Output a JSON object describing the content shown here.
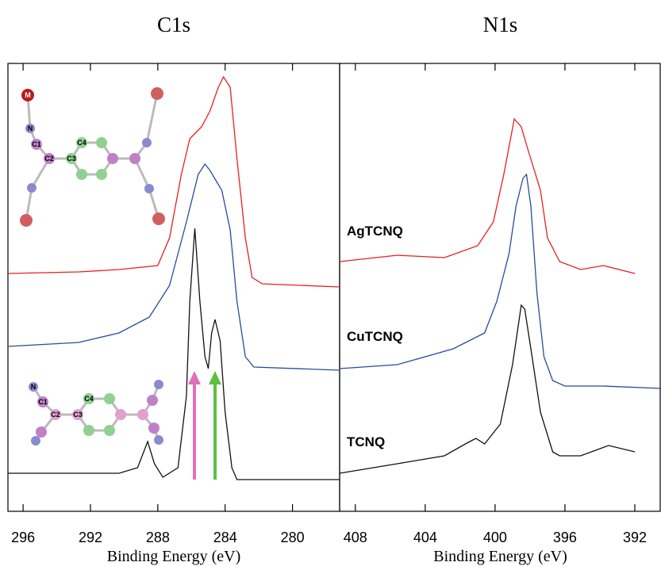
{
  "chart_data": [
    {
      "type": "line",
      "title": "C1s",
      "xlabel": "Binding Energy (eV)",
      "xlim": [
        296.9,
        277.2
      ],
      "xticks": [
        296,
        292,
        288,
        284,
        280
      ],
      "ylim": [
        0,
        565
      ],
      "series": [
        {
          "color": "#e8201e",
          "x": [
            296.9,
            292.7,
            290.3,
            288.0,
            287.3,
            286.6,
            286.1,
            285.4,
            284.9,
            284.4,
            284.1,
            283.7,
            283.3,
            282.8,
            282.4,
            281.8,
            277.2
          ],
          "values": [
            300,
            302,
            305,
            310,
            345,
            425,
            470,
            485,
            505,
            535,
            548,
            535,
            445,
            345,
            295,
            287,
            283
          ]
        },
        {
          "color": "#2a4a9c",
          "x": [
            296.9,
            292.7,
            290.3,
            288.5,
            287.3,
            286.3,
            285.6,
            285.2,
            284.9,
            284.2,
            283.7,
            283.3,
            282.8,
            282.3,
            277.2
          ],
          "values": [
            208,
            213,
            225,
            245,
            285,
            365,
            425,
            438,
            430,
            405,
            355,
            265,
            195,
            182,
            178
          ]
        },
        {
          "color": "#111111",
          "x": [
            296.9,
            290.3,
            289.2,
            288.6,
            288.2,
            287.7,
            286.8,
            286.3,
            286.1,
            285.8,
            285.5,
            285.2,
            285.0,
            284.8,
            284.6,
            284.3,
            284.0,
            283.6,
            283.3,
            277.2
          ],
          "values": [
            48,
            48,
            55,
            88,
            60,
            43,
            55,
            145,
            265,
            357,
            265,
            195,
            180,
            225,
            242,
            215,
            125,
            55,
            40,
            40
          ]
        }
      ]
    },
    {
      "type": "line",
      "title": "N1s",
      "xlabel": "Binding Energy (eV)",
      "xlim": [
        408.9,
        390.5
      ],
      "xticks": [
        408,
        404,
        400,
        396,
        392
      ],
      "ylim": [
        0,
        565
      ],
      "series": [
        {
          "name": "AgTCNQ",
          "color": "#e8201e",
          "x": [
            408.9,
            405.6,
            402.9,
            401.0,
            400.1,
            399.5,
            398.9,
            398.5,
            398.1,
            397.4,
            397.0,
            396.3,
            395.1,
            393.8,
            392.0
          ],
          "values": [
            315,
            323,
            320,
            335,
            365,
            425,
            495,
            485,
            455,
            405,
            345,
            315,
            305,
            310,
            300
          ]
        },
        {
          "name": "CuTCNQ",
          "color": "#2a4a9c",
          "x": [
            408.9,
            405.6,
            402.4,
            400.6,
            399.9,
            399.2,
            398.8,
            398.4,
            398.2,
            397.95,
            397.6,
            397.2,
            396.7,
            396.0,
            393.8,
            390.5
          ],
          "values": [
            180,
            185,
            205,
            225,
            265,
            325,
            385,
            420,
            425,
            385,
            275,
            195,
            165,
            158,
            158,
            155
          ]
        },
        {
          "name": "TCNQ",
          "color": "#111111",
          "x": [
            408.9,
            405.6,
            402.9,
            401.7,
            401.1,
            400.6,
            399.7,
            399.0,
            398.5,
            398.3,
            397.95,
            397.4,
            396.7,
            396.3,
            395.1,
            393.5,
            392.0
          ],
          "values": [
            48,
            60,
            70,
            85,
            92,
            85,
            110,
            185,
            260,
            255,
            205,
            125,
            75,
            70,
            70,
            83,
            75
          ]
        }
      ]
    }
  ],
  "diagrams": {
    "top": {
      "labels": [
        "M",
        "N",
        "C1",
        "C2",
        "C3",
        "C4"
      ]
    },
    "bottom": {
      "labels": [
        "N",
        "C1",
        "C2",
        "C3",
        "C4"
      ]
    }
  }
}
